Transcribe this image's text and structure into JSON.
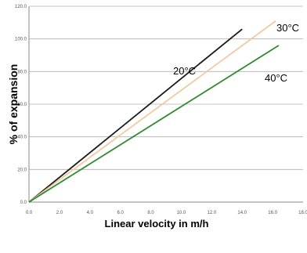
{
  "chart_data": {
    "type": "line",
    "title": "",
    "xlabel": "Linear velocity in m/h",
    "ylabel": "% of expansion",
    "xlim": [
      0,
      18
    ],
    "ylim": [
      0,
      120
    ],
    "x_ticks": [
      "0.0",
      "2.0",
      "4.0",
      "6.0",
      "8.0",
      "10.0",
      "12.0",
      "14.0",
      "16.0",
      "18.0"
    ],
    "y_ticks": [
      "0.0",
      "20.0",
      "40.0",
      "60.0",
      "80.0",
      "100.0",
      "120.0"
    ],
    "grid": "horizontal",
    "series": [
      {
        "name": "20°C",
        "color": "#1a1a1a",
        "x": [
          0,
          14.0
        ],
        "y": [
          0,
          106
        ]
      },
      {
        "name": "30°C",
        "color": "#f2c9a0",
        "x": [
          0,
          16.2
        ],
        "y": [
          0,
          111
        ]
      },
      {
        "name": "40°C",
        "color": "#2e8b2e",
        "x": [
          0,
          16.4
        ],
        "y": [
          0,
          96
        ]
      }
    ]
  }
}
